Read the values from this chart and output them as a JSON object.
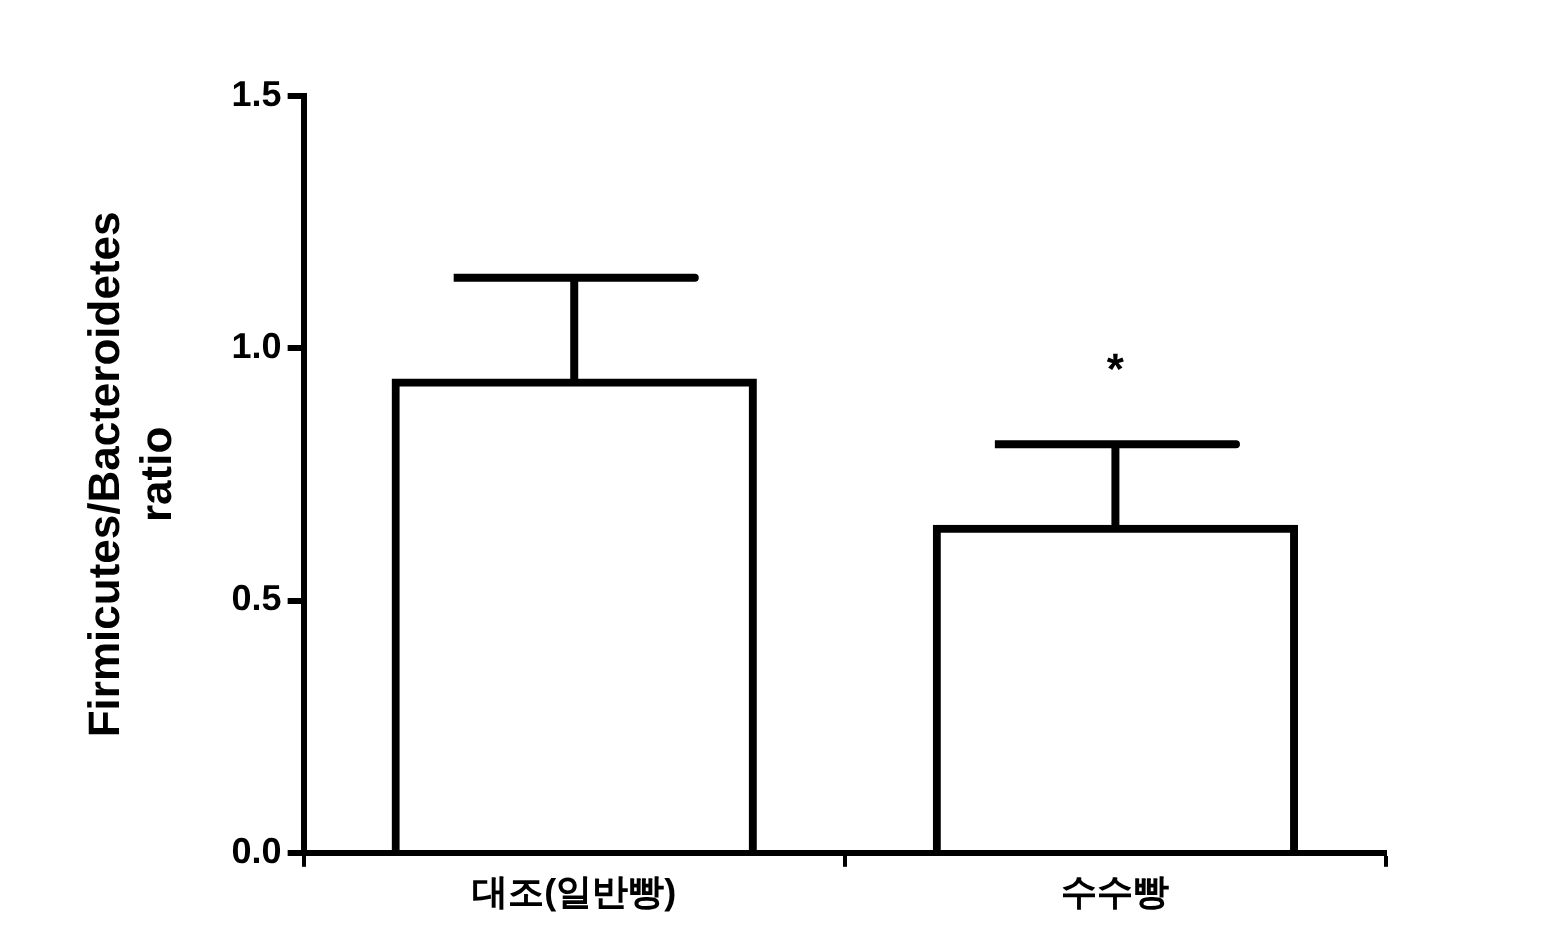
{
  "chart_data": {
    "type": "bar",
    "ylabel": "Firmicutes/Bacteroidetes ratio",
    "categories": [
      "대조(일반빵)",
      "수수빵"
    ],
    "values": [
      0.94,
      0.65
    ],
    "color": "#000000",
    "errors": [
      [
        0.94,
        1.14
      ],
      [
        0.65,
        0.81
      ]
    ],
    "ylim": [
      0,
      1.5
    ],
    "yticks": [
      {
        "value": 0,
        "label": "0.0"
      },
      {
        "value": 0.5,
        "label": "0.5"
      },
      {
        "value": 1,
        "label": "1.0"
      },
      {
        "value": 1.5,
        "label": "1.5"
      }
    ],
    "grid": false,
    "legend": false,
    "annotations": [
      "*"
    ]
  }
}
